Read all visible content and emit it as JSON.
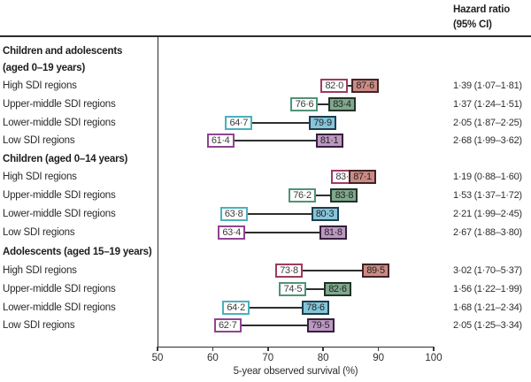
{
  "chart_data": {
    "type": "dumbbell",
    "title": "",
    "xlabel": "5-year observed survival (%)",
    "xlim": [
      50,
      100
    ],
    "xticks": [
      50,
      60,
      70,
      80,
      90,
      100
    ],
    "grid": false,
    "hazard_header": [
      "Hazard ratio",
      "(95% CI)"
    ],
    "sections": [
      {
        "header_lines": [
          "Children and adolescents",
          "(aged 0–19 years)"
        ],
        "rows": [
          {
            "label": "High SDI regions",
            "open": 82.0,
            "filled": 87.6,
            "hr": "1·39 (1·07–1·81)"
          },
          {
            "label": "Upper-middle SDI regions",
            "open": 76.6,
            "filled": 83.4,
            "hr": "1·37 (1·24–1·51)"
          },
          {
            "label": "Lower-middle SDI regions",
            "open": 64.7,
            "filled": 79.9,
            "hr": "2·05 (1·87–2·25)"
          },
          {
            "label": "Low SDI regions",
            "open": 61.4,
            "filled": 81.1,
            "hr": "2·68 (1·99–3·62)"
          }
        ]
      },
      {
        "header_lines": [
          "Children (aged 0–14 years)"
        ],
        "rows": [
          {
            "label": "High SDI regions",
            "open": 83.9,
            "filled": 87.1,
            "hr": "1·19 (0·88–1·60)"
          },
          {
            "label": "Upper-middle SDI regions",
            "open": 76.2,
            "filled": 83.8,
            "hr": "1·53 (1·37–1·72)"
          },
          {
            "label": "Lower-middle SDI regions",
            "open": 63.8,
            "filled": 80.3,
            "hr": "2·21 (1·99–2·45)"
          },
          {
            "label": "Low SDI regions",
            "open": 63.4,
            "filled": 81.8,
            "hr": "2·67 (1·88–3·80)"
          }
        ]
      },
      {
        "header_lines": [
          "Adolescents (aged 15–19 years)"
        ],
        "rows": [
          {
            "label": "High SDI regions",
            "open": 73.8,
            "filled": 89.5,
            "hr": "3·02 (1·70–5·37)"
          },
          {
            "label": "Upper-middle SDI regions",
            "open": 74.5,
            "filled": 82.6,
            "hr": "1·56 (1·22–1·99)"
          },
          {
            "label": "Lower-middle SDI regions",
            "open": 64.2,
            "filled": 78.6,
            "hr": "1·68 (1·21–2·34)"
          },
          {
            "label": "Low SDI regions",
            "open": 62.7,
            "filled": 79.5,
            "hr": "2·05 (1·25–3·34)"
          }
        ]
      }
    ],
    "colors": {
      "high": {
        "open_border": "#a03a5c",
        "filled_fill": "#cb8b84",
        "filled_border": "#402428"
      },
      "upper_middle": {
        "open_border": "#4e9475",
        "filled_fill": "#7fa88c",
        "filled_border": "#243127"
      },
      "lower_middle": {
        "open_border": "#49b1bd",
        "filled_fill": "#85c5da",
        "filled_border": "#1f3d4e"
      },
      "low": {
        "open_border": "#8e4590",
        "filled_fill": "#bd98c2",
        "filled_border": "#35203a"
      }
    }
  }
}
